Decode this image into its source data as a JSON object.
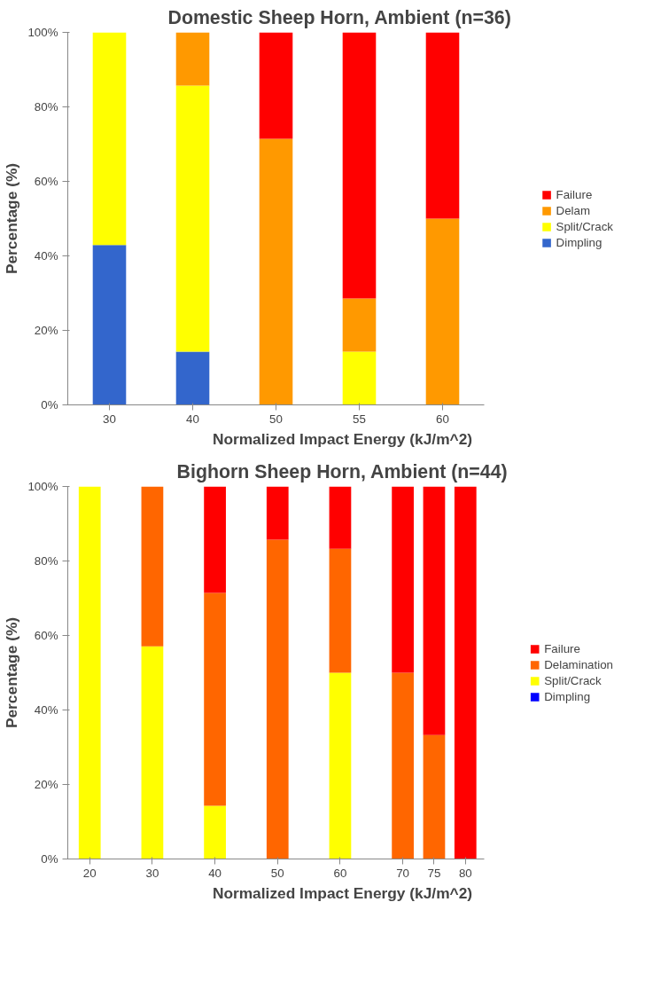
{
  "chart_data": [
    {
      "type": "bar",
      "title": "Domestic  Sheep Horn, Ambient (n=36)",
      "xlabel": "Normalized Impact Energy (kJ/m^2)",
      "ylabel": "Percentage (%)",
      "categories": [
        "30",
        "40",
        "50",
        "55",
        "60"
      ],
      "stacked": true,
      "legend": "right",
      "grid": false,
      "ylim": [
        0,
        100
      ],
      "yticks": [
        {
          "value": 0,
          "label": "0%"
        },
        {
          "value": 20,
          "label": "20%"
        },
        {
          "value": 40,
          "label": "40%"
        },
        {
          "value": 60,
          "label": "60%"
        },
        {
          "value": 80,
          "label": "80%"
        },
        {
          "value": 100,
          "label": "100%"
        }
      ],
      "series": [
        {
          "name": "Dimpling",
          "color": "#3366cc",
          "values": [
            42.9,
            14.3,
            0,
            0,
            0
          ]
        },
        {
          "name": "Split/Crack",
          "color": "#ffff00",
          "values": [
            57.1,
            71.4,
            0,
            14.3,
            0
          ]
        },
        {
          "name": "Delam",
          "color": "#ff9900",
          "values": [
            0,
            14.3,
            71.4,
            14.3,
            50
          ]
        },
        {
          "name": "Failure",
          "color": "#ff0000",
          "values": [
            0,
            0,
            28.6,
            71.4,
            50
          ]
        }
      ]
    },
    {
      "type": "bar",
      "title": "Bighorn Sheep Horn, Ambient (n=44)",
      "xlabel": "Normalized Impact Energy (kJ/m^2)",
      "ylabel": "Percentage (%)",
      "x": [
        20,
        30,
        40,
        50,
        60,
        70,
        75,
        80
      ],
      "xlim": [
        16.5,
        83
      ],
      "xticks": [
        20,
        30,
        40,
        50,
        60,
        70,
        75,
        80
      ],
      "stacked": true,
      "legend": "right",
      "grid": false,
      "ylim": [
        0,
        100
      ],
      "yticks": [
        {
          "value": 0,
          "label": "0%"
        },
        {
          "value": 20,
          "label": "20%"
        },
        {
          "value": 40,
          "label": "40%"
        },
        {
          "value": 60,
          "label": "60%"
        },
        {
          "value": 80,
          "label": "80%"
        },
        {
          "value": 100,
          "label": "100%"
        }
      ],
      "series": [
        {
          "name": "Dimpling",
          "color": "#0000ff",
          "values": [
            0,
            0,
            0,
            0,
            0,
            0,
            0,
            0
          ]
        },
        {
          "name": "Split/Crack",
          "color": "#ffff00",
          "values": [
            100,
            57.1,
            14.3,
            0,
            50,
            0,
            0,
            0
          ]
        },
        {
          "name": "Delamination",
          "color": "#ff6600",
          "values": [
            0,
            42.9,
            57.1,
            85.7,
            33.3,
            50,
            33.3,
            0
          ]
        },
        {
          "name": "Failure",
          "color": "#ff0000",
          "values": [
            0,
            0,
            28.6,
            14.3,
            16.7,
            50,
            66.7,
            100
          ]
        }
      ]
    }
  ]
}
